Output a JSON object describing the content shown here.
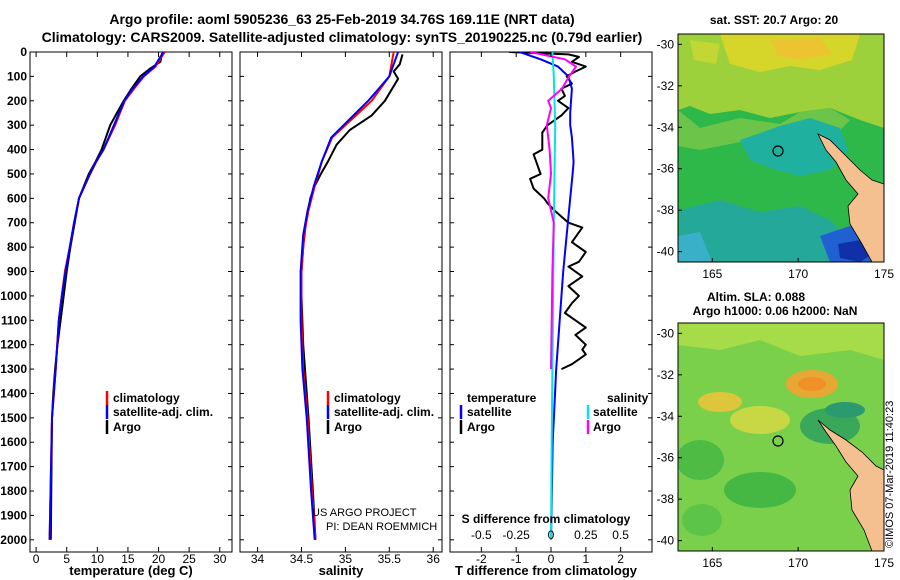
{
  "title_line1": "Argo profile: aoml 5905236_63 25-Feb-2019 34.76S 169.11E (NRT data)",
  "title_line2": "Climatology: CARS2009. Satellite-adjusted climatology: synTS_20190225.nc (0.79d earlier)",
  "credit_line1": "US ARGO PROJECT",
  "credit_line2": "PI: DEAN ROEMMICH",
  "timestamp": "©IMOS 07-Mar-2019 11:40:23",
  "colors": {
    "argo": "#000000",
    "clim": "#ff0000",
    "sat": "#0000ff",
    "sal_diff_sat": "#00e5e5",
    "sal_diff_argo": "#ff00ff",
    "land": "#f5c090"
  },
  "depth_axis": {
    "ticks": [
      "0",
      "100",
      "200",
      "300",
      "400",
      "500",
      "600",
      "700",
      "800",
      "900",
      "1000",
      "1100",
      "1200",
      "1300",
      "1400",
      "1500",
      "1600",
      "1700",
      "1800",
      "1900",
      "2000"
    ],
    "ylim": [
      0,
      2050
    ]
  },
  "legend_profile": {
    "clim": "climatology",
    "sat": "satellite-adj. clim.",
    "argo": "Argo"
  },
  "legend_diff": {
    "temp_title": "temperature",
    "sal_title": "salinity",
    "sat": "satellite",
    "argo": "Argo"
  },
  "map1": {
    "title": "sat. SST: 20.7 Argo: 20",
    "yticks": [
      "-30",
      "-32",
      "-34",
      "-36",
      "-38",
      "-40"
    ],
    "xticks": [
      "165",
      "170",
      "175"
    ],
    "xlim": [
      163,
      175
    ],
    "ylim": [
      -40.5,
      -29.5
    ],
    "argo_lon": 169.11,
    "argo_lat": -34.76
  },
  "map2": {
    "title1": "Altim. SLA: 0.088",
    "title2": "Argo h1000: 0.06 h2000: NaN",
    "yticks": [
      "-30",
      "-32",
      "-34",
      "-36",
      "-38",
      "-40"
    ],
    "xticks": [
      "165",
      "170",
      "175"
    ],
    "xlim": [
      163,
      175
    ],
    "ylim": [
      -40.5,
      -29.5
    ],
    "argo_lon": 169.11,
    "argo_lat": -34.76
  },
  "chart_data": [
    {
      "type": "line",
      "title": "",
      "xlabel": "temperature (deg C)",
      "ylabel": "",
      "xlim": [
        -1,
        32
      ],
      "ylim": [
        0,
        2050
      ],
      "y_reversed": true,
      "xticks": [
        "0",
        "5",
        "10",
        "15",
        "20",
        "25",
        "30"
      ],
      "series": [
        {
          "name": "Argo",
          "color": "#000000",
          "x": [
            20.6,
            20.3,
            18.5,
            17.0,
            15.6,
            14.3,
            13.2,
            12.1,
            10.7,
            9.7,
            8.6,
            7.8,
            7.0,
            6.3,
            5.6,
            5.0,
            4.5,
            4.0,
            3.5,
            3.1,
            2.8,
            2.6,
            2.4
          ],
          "y": [
            5,
            40,
            70,
            100,
            150,
            200,
            250,
            300,
            400,
            450,
            500,
            550,
            600,
            700,
            800,
            900,
            1000,
            1100,
            1200,
            1300,
            1400,
            1500,
            2000
          ]
        },
        {
          "name": "climatology",
          "color": "#ff0000",
          "x": [
            21.0,
            19.5,
            17.6,
            16.0,
            14.5,
            12.9,
            11.0,
            9.8,
            8.8,
            7.9,
            7.0,
            6.2,
            5.5,
            4.7,
            4.2,
            3.7,
            3.2,
            2.6,
            2.2
          ],
          "y": [
            0,
            60,
            100,
            150,
            200,
            300,
            400,
            450,
            500,
            550,
            600,
            700,
            800,
            900,
            1000,
            1100,
            1300,
            1500,
            2000
          ]
        },
        {
          "name": "satellite-adj. clim.",
          "color": "#0000ff",
          "x": [
            20.8,
            19.3,
            17.5,
            15.8,
            14.4,
            12.7,
            11.0,
            9.8,
            8.8,
            7.9,
            7.0,
            6.2,
            5.5,
            4.8,
            4.2,
            3.7,
            3.2,
            2.6,
            2.2
          ],
          "y": [
            0,
            60,
            100,
            150,
            200,
            300,
            400,
            450,
            500,
            550,
            600,
            700,
            800,
            900,
            1000,
            1100,
            1300,
            1500,
            2000
          ]
        }
      ]
    },
    {
      "type": "line",
      "title": "",
      "xlabel": "salinity",
      "ylabel": "",
      "xlim": [
        33.8,
        36.1
      ],
      "ylim": [
        0,
        2050
      ],
      "y_reversed": true,
      "xticks": [
        "34",
        "34.5",
        "35",
        "35.5",
        "36"
      ],
      "series": [
        {
          "name": "Argo",
          "color": "#000000",
          "x": [
            35.65,
            35.62,
            35.55,
            35.6,
            35.45,
            35.3,
            35.05,
            34.9,
            34.8,
            34.72,
            34.65,
            34.6,
            34.55,
            34.52,
            34.5,
            34.5,
            34.52,
            34.58,
            34.63,
            34.66
          ],
          "y": [
            10,
            50,
            80,
            110,
            200,
            260,
            320,
            380,
            450,
            500,
            550,
            600,
            700,
            800,
            900,
            1000,
            1200,
            1500,
            1800,
            2000
          ]
        },
        {
          "name": "climatology",
          "color": "#ff0000",
          "x": [
            35.55,
            35.5,
            35.4,
            35.3,
            35.15,
            35.0,
            34.85,
            34.73,
            34.65,
            34.58,
            34.53,
            34.5,
            34.5,
            34.52,
            34.57,
            34.62,
            34.66
          ],
          "y": [
            0,
            100,
            150,
            200,
            250,
            300,
            350,
            450,
            550,
            650,
            750,
            900,
            1100,
            1300,
            1500,
            1800,
            2000
          ]
        },
        {
          "name": "satellite-adj. clim.",
          "color": "#0000ff",
          "x": [
            35.6,
            35.5,
            35.38,
            35.26,
            35.12,
            34.98,
            34.84,
            34.73,
            34.64,
            34.57,
            34.52,
            34.49,
            34.49,
            34.51,
            34.56,
            34.61,
            34.65
          ],
          "y": [
            0,
            100,
            150,
            200,
            250,
            300,
            350,
            450,
            550,
            650,
            750,
            900,
            1100,
            1300,
            1500,
            1800,
            2000
          ]
        }
      ]
    },
    {
      "type": "line",
      "title": "",
      "xlabel": "T difference from climatology",
      "ylabel": "",
      "xlim": [
        -2.9,
        2.9
      ],
      "ylim": [
        0,
        2050
      ],
      "y_reversed": true,
      "xticks": [
        "-2",
        "-1",
        "0",
        "1",
        "2"
      ],
      "top_axis_label": "S difference from climatology",
      "top_xlim": [
        -0.725,
        0.725
      ],
      "top_xticks": [
        "-0.5",
        "-0.25",
        "0",
        "0.25",
        "0.5"
      ],
      "series": [
        {
          "name": "temperature Argo",
          "color": "#000000",
          "x": [
            -1.2,
            0.5,
            0.8,
            0.6,
            1.0,
            0.7,
            0.45,
            0.6,
            0.3,
            0.4,
            0.2,
            0.5,
            0.3,
            -0.1,
            -0.25,
            -0.25,
            -0.5,
            -0.4,
            -0.3,
            -0.6,
            -0.5,
            -0.2,
            -0.1,
            0.1,
            0.5,
            0.9,
            0.6,
            1.0,
            0.8,
            0.5,
            0.9,
            0.5,
            0.8,
            0.6,
            0.4,
            0.7,
            1.0,
            0.7,
            1.0,
            0.9,
            1.0,
            0.8,
            0.6,
            0.3
          ],
          "y": [
            0,
            10,
            20,
            40,
            60,
            80,
            100,
            130,
            150,
            180,
            200,
            230,
            260,
            300,
            330,
            400,
            420,
            460,
            500,
            520,
            560,
            600,
            620,
            650,
            700,
            720,
            780,
            820,
            860,
            880,
            920,
            960,
            1000,
            1030,
            1070,
            1100,
            1130,
            1160,
            1200,
            1220,
            1240,
            1260,
            1280,
            1300
          ]
        },
        {
          "name": "temperature satellite",
          "color": "#0000ff",
          "x": [
            -0.9,
            -0.3,
            0.2,
            0.5,
            0.6,
            0.55,
            0.55,
            0.6,
            0.65,
            0.62,
            0.55,
            0.45,
            0.35,
            0.25,
            0.15,
            0.05,
            0.0
          ],
          "y": [
            0,
            30,
            60,
            100,
            150,
            250,
            300,
            350,
            450,
            500,
            600,
            750,
            900,
            1100,
            1300,
            1600,
            2000
          ]
        },
        {
          "name": "salinity satellite",
          "color": "#00e5e5",
          "x": [
            0.01,
            0.02,
            0.025,
            0.03,
            0.025,
            0.02,
            0.015,
            0.01,
            0.005,
            0.0
          ],
          "y": [
            0,
            100,
            200,
            300,
            500,
            700,
            1000,
            1300,
            1600,
            2000
          ]
        },
        {
          "name": "salinity Argo",
          "color": "#ff00ff",
          "x": [
            -0.15,
            0.1,
            0.18,
            0.13,
            0.08,
            -0.02,
            0.0,
            -0.03,
            -0.01,
            0.0,
            -0.02,
            0.02,
            0.01,
            0.0
          ],
          "y": [
            0,
            30,
            60,
            100,
            150,
            200,
            230,
            300,
            400,
            500,
            600,
            700,
            900,
            1300
          ]
        }
      ]
    }
  ]
}
